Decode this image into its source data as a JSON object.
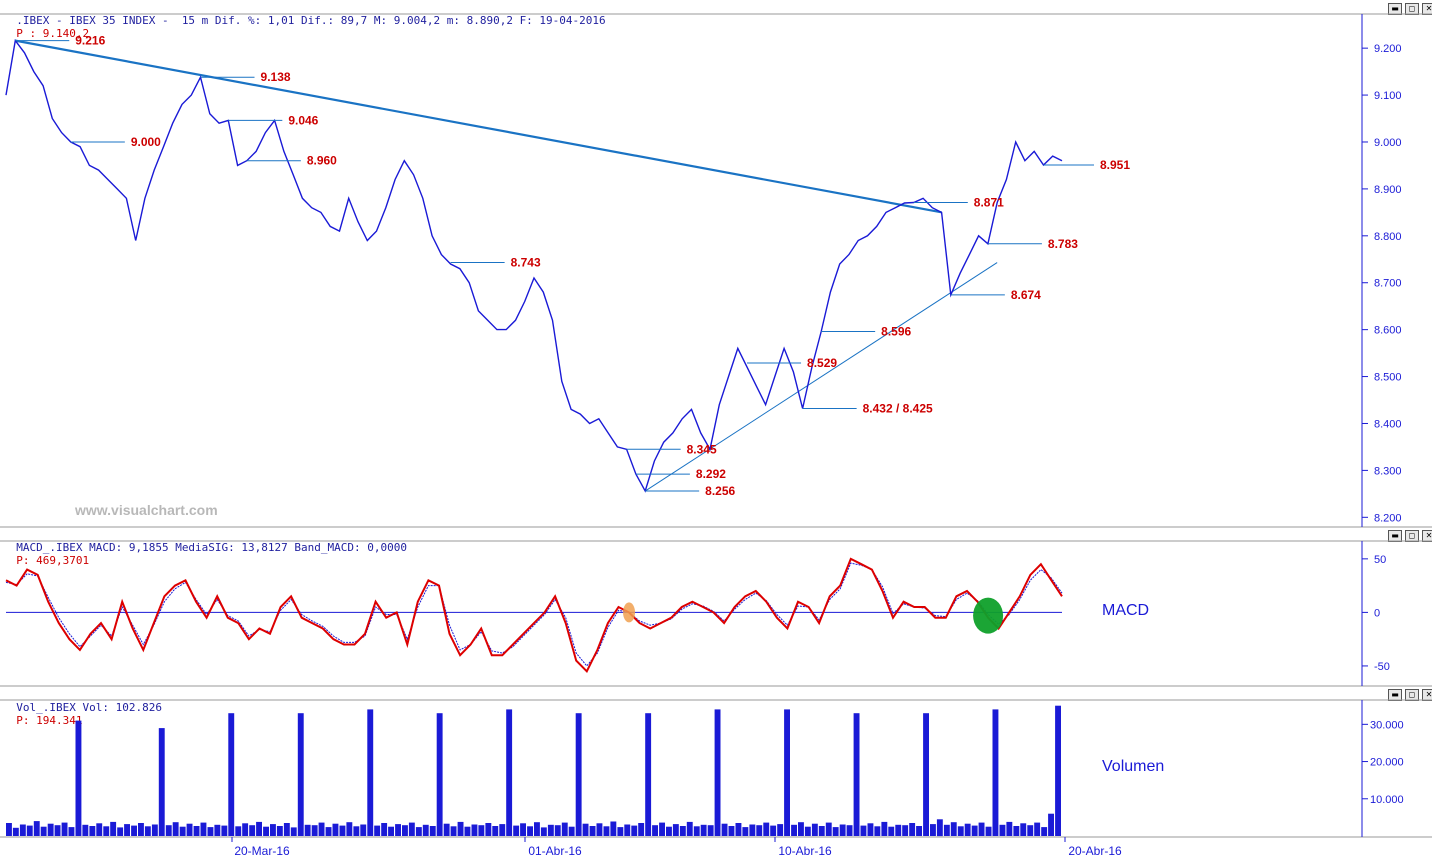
{
  "price_header": {
    "prefix": ".IBEX - IBEX 35 INDEX -  15 m Dif. %: 1,01 Dif.: 89,7 M: 9.004,2 m: 8.890,2 F: 19-04-2016",
    "value": "P : 9.140,2"
  },
  "macd_header": {
    "prefix": "MACD_.IBEX MACD: 9,1855 MediaSIG: 13,8127 Band_MACD: 0,0000",
    "value": "P: 469,3701"
  },
  "vol_header": {
    "prefix": "Vol_.IBEX Vol: 102.826",
    "value": "P: 194.341"
  },
  "watermark": "www.visualchart.com",
  "window_buttons": [
    "▬",
    "◻",
    "✕"
  ],
  "colors": {
    "price": "#1a1ad6",
    "trend": "#1a73c4",
    "level_label": "#cc0000",
    "macd": "#dd0000",
    "signal": "#1a1ad6",
    "volume": "#1a1ad6",
    "highlight_green": "#0fa02a",
    "highlight_orange": "#f0a050"
  },
  "chart_data": [
    {
      "type": "line",
      "panel": "price",
      "y_ticks": [
        "9.200",
        "9.100",
        "9.000",
        "8.900",
        "8.800",
        "8.700",
        "8.600",
        "8.500",
        "8.400",
        "8.300",
        "8.200"
      ],
      "ylim": [
        8190,
        9260
      ],
      "x_ticks": [
        "20-Mar-16",
        "01-Abr-16",
        "10-Abr-16",
        "20-Abr-16"
      ],
      "series": [
        {
          "values": [
            9100,
            9216,
            9190,
            9150,
            9120,
            9050,
            9020,
            9000,
            8990,
            8950,
            8940,
            8920,
            8900,
            8880,
            8790,
            8880,
            8940,
            8990,
            9040,
            9080,
            9100,
            9138,
            9060,
            9040,
            9046,
            8950,
            8960,
            8980,
            9020,
            9046,
            8980,
            8930,
            8880,
            8860,
            8850,
            8820,
            8810,
            8880,
            8830,
            8790,
            8810,
            8860,
            8920,
            8960,
            8930,
            8880,
            8800,
            8760,
            8740,
            8730,
            8700,
            8640,
            8620,
            8600,
            8600,
            8620,
            8660,
            8710,
            8680,
            8620,
            8490,
            8430,
            8420,
            8400,
            8410,
            8380,
            8350,
            8345,
            8292,
            8256,
            8320,
            8360,
            8380,
            8410,
            8430,
            8380,
            8345,
            8440,
            8500,
            8560,
            8520,
            8480,
            8440,
            8500,
            8560,
            8510,
            8432,
            8520,
            8596,
            8680,
            8740,
            8760,
            8790,
            8800,
            8820,
            8850,
            8860,
            8870,
            8871,
            8880,
            8860,
            8850,
            8674,
            8720,
            8760,
            8800,
            8783,
            8871,
            8920,
            9000,
            8960,
            8980,
            8951,
            8970,
            8960
          ]
        }
      ],
      "levels": [
        {
          "label": "9.216",
          "value": 9216
        },
        {
          "label": "9.138",
          "value": 9138
        },
        {
          "label": "9.046",
          "value": 9046
        },
        {
          "label": "8.960",
          "value": 8960
        },
        {
          "label": "9.000",
          "value": 9000
        },
        {
          "label": "8.951",
          "value": 8951
        },
        {
          "label": "8.871",
          "value": 8871
        },
        {
          "label": "8.783",
          "value": 8783
        },
        {
          "label": "8.743",
          "value": 8743
        },
        {
          "label": "8.674",
          "value": 8674
        },
        {
          "label": "8.596",
          "value": 8596
        },
        {
          "label": "8.529",
          "value": 8529
        },
        {
          "label": "8.432 / 8.425",
          "value": 8432
        },
        {
          "label": "8.345",
          "value": 8345
        },
        {
          "label": "8.292",
          "value": 8292
        },
        {
          "label": "8.256",
          "value": 8256
        }
      ]
    },
    {
      "type": "line",
      "panel": "macd",
      "title": "MACD",
      "y_ticks": [
        "50",
        "0",
        "-50"
      ],
      "ylim": [
        -65,
        62
      ],
      "series": [
        {
          "values": [
            30,
            25,
            40,
            35,
            10,
            -10,
            -25,
            -35,
            -20,
            -10,
            -25,
            10,
            -15,
            -35,
            -10,
            15,
            25,
            30,
            10,
            -5,
            15,
            -5,
            -10,
            -25,
            -15,
            -20,
            5,
            15,
            -5,
            -10,
            -15,
            -25,
            -30,
            -30,
            -20,
            10,
            -5,
            0,
            -30,
            10,
            30,
            25,
            -20,
            -40,
            -30,
            -15,
            -40,
            -40,
            -30,
            -20,
            -10,
            0,
            15,
            -10,
            -45,
            -55,
            -35,
            -10,
            5,
            0,
            -10,
            -15,
            -10,
            -5,
            5,
            10,
            5,
            0,
            -10,
            5,
            15,
            20,
            10,
            -5,
            -15,
            10,
            5,
            -10,
            15,
            25,
            50,
            45,
            40,
            20,
            -5,
            10,
            5,
            5,
            -5,
            -5,
            15,
            20,
            10,
            -5,
            -15,
            0,
            15,
            35,
            45,
            30,
            15
          ]
        },
        {
          "values": [
            28,
            26,
            36,
            34,
            14,
            -5,
            -20,
            -32,
            -22,
            -12,
            -22,
            5,
            -12,
            -30,
            -12,
            10,
            22,
            28,
            12,
            -2,
            12,
            -3,
            -8,
            -22,
            -16,
            -18,
            2,
            12,
            -2,
            -8,
            -13,
            -22,
            -28,
            -28,
            -22,
            5,
            -2,
            -2,
            -25,
            5,
            25,
            25,
            -12,
            -35,
            -30,
            -18,
            -36,
            -38,
            -32,
            -22,
            -12,
            -2,
            12,
            -5,
            -38,
            -50,
            -38,
            -14,
            2,
            0,
            -8,
            -12,
            -10,
            -6,
            3,
            8,
            6,
            1,
            -8,
            3,
            12,
            18,
            11,
            -2,
            -12,
            6,
            5,
            -7,
            12,
            22,
            46,
            44,
            40,
            24,
            -1,
            8,
            5,
            4,
            -3,
            -4,
            12,
            18,
            11,
            -2,
            -11,
            -2,
            12,
            30,
            40,
            32,
            18
          ]
        }
      ]
    },
    {
      "type": "bar",
      "panel": "volume",
      "title": "Volumen",
      "y_ticks": [
        "30.000",
        "20.000",
        "10.000"
      ],
      "ylim": [
        0,
        36000
      ],
      "values": [
        3500,
        2200,
        3100,
        2800,
        4000,
        2500,
        3300,
        2900,
        3600,
        2400,
        31000,
        3000,
        2700,
        3400,
        2600,
        3800,
        2300,
        3200,
        2800,
        3500,
        2600,
        3100,
        29000,
        2900,
        3700,
        2500,
        3300,
        2700,
        3600,
        2400,
        3000,
        2800,
        33000,
        2600,
        3400,
        2900,
        3800,
        2500,
        3200,
        2700,
        3500,
        2300,
        33000,
        3000,
        2900,
        3600,
        2400,
        3300,
        2800,
        3700,
        2600,
        3100,
        34000,
        2800,
        3500,
        2500,
        3200,
        2900,
        3600,
        2400,
        3000,
        2700,
        33000,
        3300,
        2600,
        3800,
        2500,
        3100,
        2900,
        3500,
        2700,
        3200,
        34000,
        2800,
        3400,
        2600,
        3700,
        2300,
        3000,
        2900,
        3600,
        2500,
        33000,
        3300,
        2700,
        3400,
        2600,
        3900,
        2400,
        3100,
        2800,
        3500,
        33000,
        2900,
        3600,
        2500,
        3200,
        2700,
        3800,
        2600,
        3000,
        2900,
        34000,
        3300,
        2700,
        3500,
        2400,
        3100,
        2900,
        3600,
        2800,
        3200,
        34000,
        3000,
        3700,
        2500,
        3300,
        2700,
        3600,
        2400,
        3100,
        2900,
        33000,
        2800,
        3400,
        2600,
        3800,
        2500,
        3000,
        2900,
        3500,
        2700,
        33000,
        3200,
        4500,
        3000,
        3700,
        2600,
        3300,
        2800,
        3600,
        2500,
        34000,
        3000,
        3800,
        2700,
        3400,
        2900,
        3600,
        2400,
        6000,
        35000
      ]
    }
  ]
}
